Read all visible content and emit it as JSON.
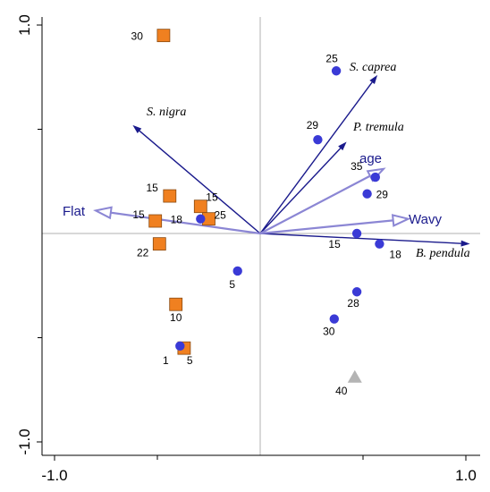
{
  "chart_data": {
    "type": "scatter",
    "title": "",
    "xlabel": "",
    "ylabel": "",
    "xlim": [
      -1.1,
      1.02
    ],
    "ylim": [
      -1.02,
      1.03
    ],
    "x_tick_labels": [
      {
        "value": -1.0,
        "label": "-1.0"
      },
      {
        "value": 1.0,
        "label": "1.0"
      }
    ],
    "y_tick_labels": [
      {
        "value": 1.0,
        "label": "1.0"
      },
      {
        "value": -1.0,
        "label": "-1.0"
      }
    ],
    "minor_ticks_x": [
      -0.5,
      0.5
    ],
    "minor_ticks_y": [
      0.5,
      -0.5
    ],
    "zero_lines": true,
    "colors": {
      "species_arrow": "#1a1a8c",
      "env_arrow": "#8b86d4",
      "env_label": "#1a1a8c",
      "square": "#f08020",
      "square_edge": "#8a4a10",
      "circle": "#3a3ad6",
      "triangle": "#b4b4b4",
      "axis": "#000000",
      "zero_line": "#b0b0b0"
    },
    "species_arrows": [
      {
        "name": "S. nigra",
        "x": -0.62,
        "y": 0.52
      },
      {
        "name": "S. caprea",
        "x": 0.57,
        "y": 0.76
      },
      {
        "name": "P. tremula",
        "x": 0.42,
        "y": 0.44
      },
      {
        "name": "B. pendula",
        "x": 1.02,
        "y": -0.05
      }
    ],
    "env_arrows": [
      {
        "name": "age",
        "x": 0.6,
        "y": 0.31
      },
      {
        "name": "Flat",
        "x": -0.8,
        "y": 0.11
      },
      {
        "name": "Wavy",
        "x": 0.72,
        "y": 0.07
      }
    ],
    "series": [
      {
        "marker": "square",
        "points": [
          {
            "label": "30",
            "x": -0.47,
            "y": 0.95
          },
          {
            "label": "15",
            "x": -0.44,
            "y": 0.18
          },
          {
            "label": "15",
            "x": -0.29,
            "y": 0.13
          },
          {
            "label": "15",
            "x": -0.51,
            "y": 0.06
          },
          {
            "label": "25",
            "x": -0.25,
            "y": 0.07
          },
          {
            "label": "22",
            "x": -0.49,
            "y": -0.05
          },
          {
            "label": "10",
            "x": -0.41,
            "y": -0.34
          },
          {
            "label": "5",
            "x": -0.37,
            "y": -0.55
          }
        ]
      },
      {
        "marker": "circle",
        "points": [
          {
            "label": "25",
            "x": 0.37,
            "y": 0.78
          },
          {
            "label": "29",
            "x": 0.28,
            "y": 0.45
          },
          {
            "label": "35",
            "x": 0.56,
            "y": 0.27
          },
          {
            "label": "29",
            "x": 0.52,
            "y": 0.19
          },
          {
            "label": "18",
            "x": -0.29,
            "y": 0.07
          },
          {
            "label": "15",
            "x": 0.47,
            "y": 0.0
          },
          {
            "label": "18",
            "x": 0.58,
            "y": -0.05
          },
          {
            "label": "5",
            "x": -0.11,
            "y": -0.18
          },
          {
            "label": "28",
            "x": 0.47,
            "y": -0.28
          },
          {
            "label": "30",
            "x": 0.36,
            "y": -0.41
          },
          {
            "label": "1",
            "x": -0.39,
            "y": -0.54
          }
        ]
      },
      {
        "marker": "triangle",
        "points": [
          {
            "label": "40",
            "x": 0.46,
            "y": -0.69
          }
        ]
      }
    ]
  }
}
